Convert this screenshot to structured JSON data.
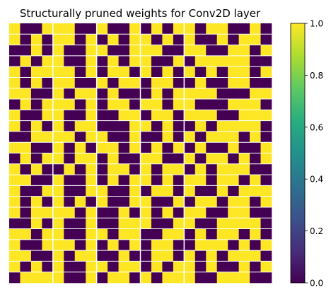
{
  "chart_data": {
    "type": "heatmap",
    "title": "Structurally pruned weights for Conv2D layer",
    "xlabel": "",
    "ylabel": "",
    "colormap": "viridis",
    "vmin": 0.0,
    "vmax": 1.0,
    "grid": false,
    "colorbar": {
      "placement": "right",
      "ticks": [
        0.0,
        0.2,
        0.4,
        0.6,
        0.8,
        1.0
      ],
      "tick_labels": [
        "0.0",
        "0.2",
        "0.4",
        "0.6",
        "0.8",
        "1.0"
      ]
    },
    "n_rows": 24,
    "n_cols": 24,
    "column_group_boundaries": [
      4,
      8,
      12,
      16
    ],
    "low_color": "#440154",
    "high_color": "#fde725",
    "separator_color": "#ffffff",
    "values": [
      [
        1,
        0,
        0,
        1,
        1,
        1,
        0,
        0,
        1,
        0,
        0,
        1,
        0,
        1,
        0,
        1,
        1,
        0,
        1,
        1,
        0,
        0,
        1,
        0
      ],
      [
        1,
        0,
        1,
        0,
        1,
        1,
        0,
        1,
        0,
        1,
        0,
        1,
        1,
        0,
        1,
        0,
        1,
        0,
        0,
        1,
        0,
        1,
        1,
        0
      ],
      [
        0,
        0,
        1,
        0,
        1,
        0,
        0,
        1,
        1,
        0,
        0,
        1,
        1,
        1,
        0,
        0,
        1,
        1,
        0,
        0,
        1,
        1,
        0,
        1
      ],
      [
        0,
        1,
        0,
        1,
        1,
        0,
        0,
        1,
        0,
        1,
        0,
        1,
        1,
        0,
        0,
        1,
        0,
        1,
        1,
        1,
        1,
        1,
        0,
        0
      ],
      [
        1,
        0,
        1,
        1,
        1,
        1,
        0,
        1,
        0,
        1,
        1,
        0,
        1,
        0,
        1,
        0,
        1,
        0,
        1,
        0,
        1,
        1,
        0,
        1
      ],
      [
        1,
        0,
        1,
        0,
        1,
        1,
        0,
        0,
        1,
        0,
        1,
        1,
        0,
        1,
        1,
        0,
        0,
        1,
        0,
        0,
        1,
        1,
        0,
        0
      ],
      [
        1,
        1,
        0,
        0,
        1,
        0,
        1,
        1,
        0,
        1,
        0,
        0,
        0,
        1,
        0,
        1,
        1,
        1,
        1,
        0,
        0,
        0,
        1,
        1
      ],
      [
        0,
        1,
        0,
        1,
        1,
        1,
        0,
        1,
        0,
        1,
        1,
        0,
        1,
        1,
        0,
        1,
        1,
        0,
        0,
        0,
        1,
        1,
        1,
        0
      ],
      [
        1,
        0,
        0,
        1,
        1,
        0,
        0,
        1,
        0,
        0,
        1,
        1,
        0,
        1,
        1,
        0,
        1,
        1,
        1,
        0,
        0,
        1,
        1,
        1
      ],
      [
        1,
        0,
        1,
        0,
        1,
        0,
        1,
        1,
        0,
        0,
        0,
        1,
        1,
        0,
        1,
        0,
        0,
        1,
        0,
        1,
        1,
        1,
        1,
        0
      ],
      [
        0,
        0,
        1,
        1,
        1,
        1,
        0,
        1,
        1,
        0,
        0,
        1,
        0,
        0,
        1,
        0,
        1,
        0,
        1,
        1,
        1,
        0,
        1,
        0
      ],
      [
        1,
        1,
        0,
        0,
        1,
        0,
        1,
        0,
        1,
        1,
        0,
        1,
        0,
        1,
        0,
        1,
        0,
        1,
        0,
        0,
        1,
        0,
        0,
        1
      ],
      [
        0,
        1,
        0,
        1,
        1,
        0,
        1,
        1,
        0,
        1,
        0,
        0,
        1,
        1,
        0,
        0,
        1,
        0,
        1,
        1,
        0,
        1,
        0,
        1
      ],
      [
        1,
        0,
        1,
        0,
        0,
        1,
        0,
        1,
        0,
        1,
        1,
        0,
        1,
        0,
        1,
        1,
        0,
        1,
        0,
        1,
        1,
        1,
        0,
        0
      ],
      [
        1,
        1,
        0,
        0,
        1,
        0,
        0,
        1,
        0,
        1,
        0,
        1,
        1,
        0,
        1,
        0,
        1,
        1,
        0,
        1,
        1,
        0,
        1,
        0
      ],
      [
        1,
        0,
        0,
        1,
        1,
        0,
        0,
        1,
        1,
        0,
        0,
        1,
        0,
        1,
        1,
        0,
        1,
        0,
        0,
        1,
        0,
        1,
        1,
        1
      ],
      [
        1,
        0,
        1,
        0,
        1,
        0,
        1,
        0,
        1,
        0,
        0,
        1,
        1,
        0,
        0,
        1,
        0,
        1,
        1,
        0,
        1,
        1,
        0,
        1
      ],
      [
        1,
        0,
        1,
        1,
        1,
        1,
        0,
        1,
        0,
        0,
        1,
        0,
        1,
        0,
        1,
        0,
        1,
        1,
        0,
        0,
        1,
        1,
        0,
        0
      ],
      [
        0,
        0,
        1,
        0,
        1,
        0,
        0,
        1,
        0,
        0,
        1,
        1,
        1,
        0,
        0,
        1,
        1,
        0,
        0,
        1,
        1,
        1,
        1,
        0
      ],
      [
        1,
        1,
        0,
        1,
        1,
        0,
        0,
        1,
        1,
        0,
        1,
        1,
        0,
        0,
        1,
        1,
        0,
        1,
        0,
        1,
        1,
        0,
        1,
        0
      ],
      [
        1,
        0,
        0,
        1,
        1,
        1,
        0,
        1,
        0,
        1,
        0,
        1,
        0,
        1,
        1,
        0,
        0,
        1,
        1,
        1,
        0,
        1,
        0,
        1
      ],
      [
        1,
        1,
        0,
        0,
        1,
        0,
        1,
        1,
        0,
        0,
        1,
        0,
        0,
        1,
        1,
        0,
        1,
        0,
        1,
        0,
        1,
        1,
        1,
        0
      ],
      [
        1,
        0,
        1,
        0,
        1,
        0,
        0,
        1,
        1,
        0,
        1,
        1,
        0,
        1,
        0,
        1,
        1,
        0,
        1,
        0,
        0,
        1,
        0,
        1
      ],
      [
        0,
        1,
        1,
        1,
        1,
        0,
        0,
        1,
        0,
        1,
        1,
        0,
        1,
        0,
        1,
        1,
        1,
        0,
        0,
        1,
        1,
        1,
        0,
        0
      ]
    ]
  }
}
